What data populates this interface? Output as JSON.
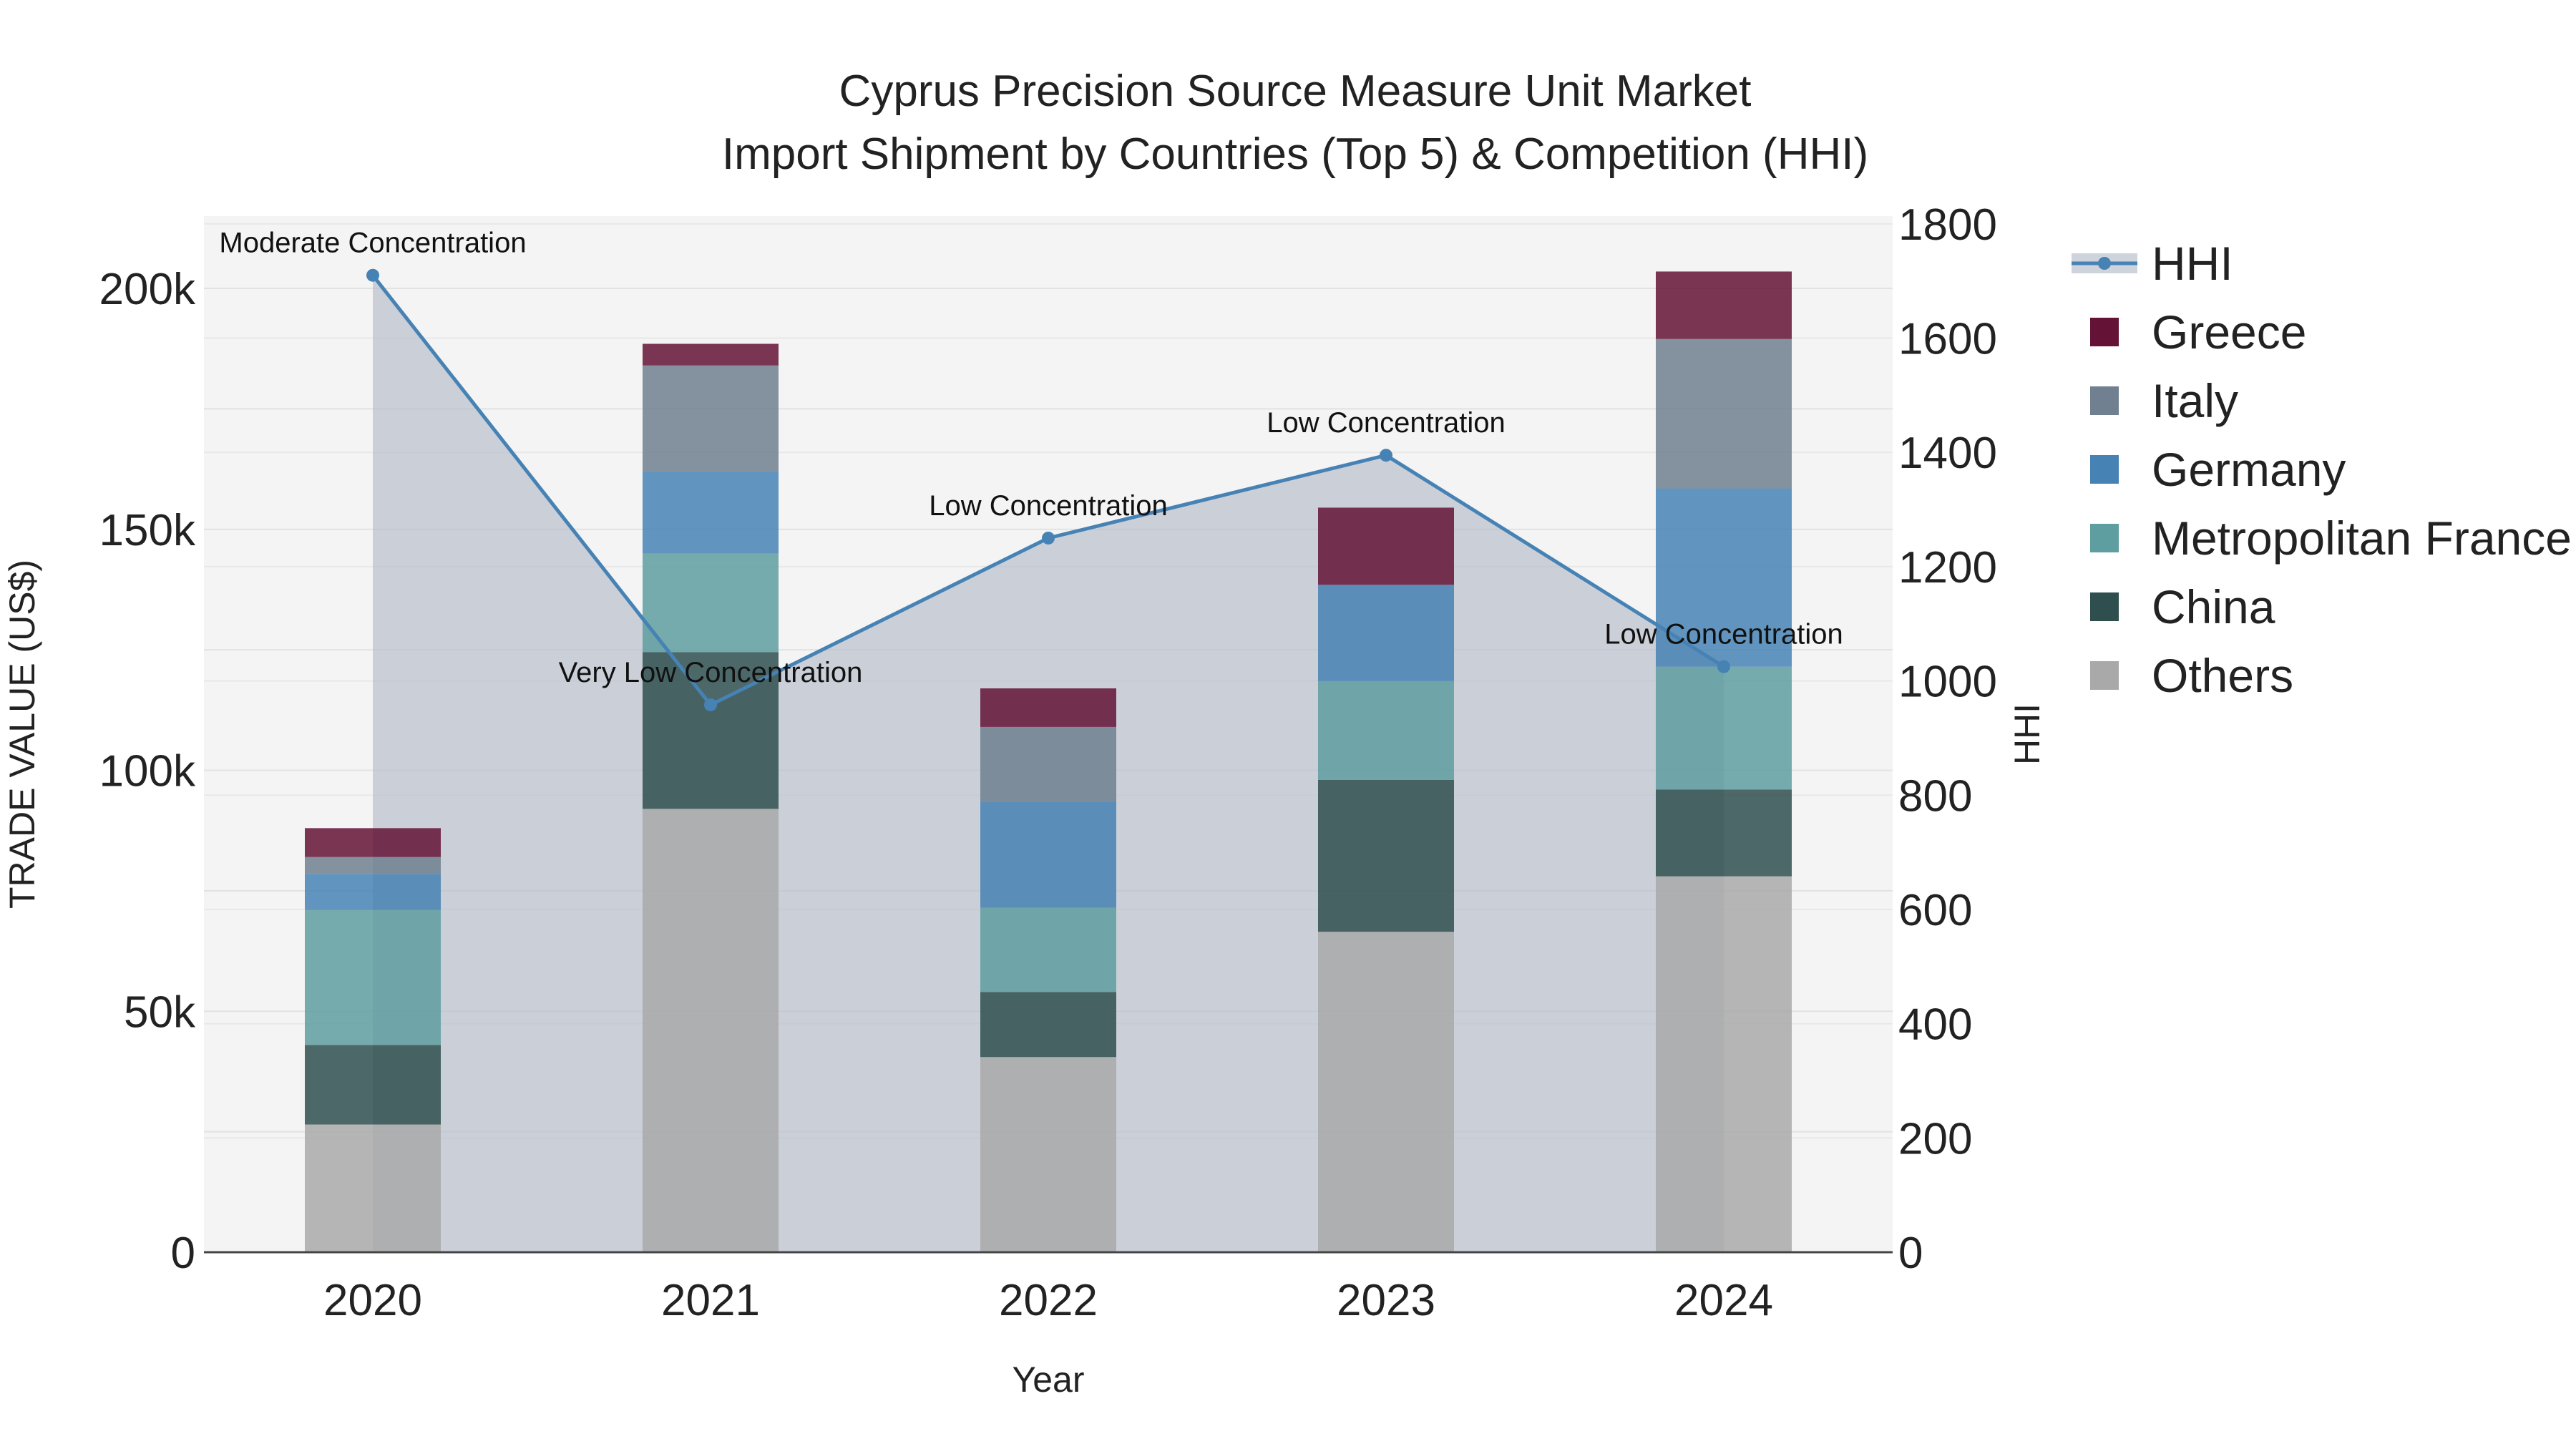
{
  "chart_data": {
    "type": "bar",
    "title_line1": "Cyprus Precision Source Measure Unit Market",
    "title_line2": "Import Shipment by Countries (Top 5) & Competition (HHI)",
    "xlabel": "Year",
    "ylabel": "TRADE VALUE (US$)",
    "y2label": "HHI",
    "categories": [
      "2020",
      "2021",
      "2022",
      "2023",
      "2024"
    ],
    "ylim": [
      0,
      215000
    ],
    "y2lim": [
      0,
      1813.6
    ],
    "yticks": [
      {
        "value": 0,
        "label": "0"
      },
      {
        "value": 50000,
        "label": "50k"
      },
      {
        "value": 100000,
        "label": "100k"
      },
      {
        "value": 150000,
        "label": "150k"
      },
      {
        "value": 200000,
        "label": "200k"
      }
    ],
    "y2ticks": [
      {
        "value": 0,
        "label": "0"
      },
      {
        "value": 200,
        "label": "200"
      },
      {
        "value": 400,
        "label": "400"
      },
      {
        "value": 600,
        "label": "600"
      },
      {
        "value": 800,
        "label": "800"
      },
      {
        "value": 1000,
        "label": "1000"
      },
      {
        "value": 1200,
        "label": "1200"
      },
      {
        "value": 1400,
        "label": "1400"
      },
      {
        "value": 1600,
        "label": "1600"
      },
      {
        "value": 1800,
        "label": "1800"
      }
    ],
    "series": [
      {
        "name": "Others",
        "color": "#a9a9a9",
        "values": [
          26500,
          92000,
          40500,
          66500,
          78000
        ]
      },
      {
        "name": "China",
        "color": "#2f4f4f",
        "values": [
          16500,
          32500,
          13500,
          31500,
          18000
        ]
      },
      {
        "name": "Metropolitan France",
        "color": "#5f9ea0",
        "values": [
          28000,
          20500,
          17500,
          20500,
          25500
        ]
      },
      {
        "name": "Germany",
        "color": "#4682b4",
        "values": [
          7500,
          17000,
          22000,
          20000,
          37000
        ]
      },
      {
        "name": "Italy",
        "color": "#708090",
        "values": [
          3500,
          22000,
          15500,
          0,
          31000
        ]
      },
      {
        "name": "Greece",
        "color": "#641336",
        "values": [
          6000,
          4500,
          8000,
          16000,
          14000
        ]
      }
    ],
    "hhi": {
      "name": "HHI",
      "color": "#4682b4",
      "values": [
        1710,
        958,
        1250,
        1395,
        1025
      ],
      "labels": [
        "Moderate Concentration",
        "Very Low Concentration",
        "Low Concentration",
        "Low Concentration",
        "Low Concentration"
      ]
    },
    "legend": {
      "position": "right",
      "items": [
        "HHI",
        "Greece",
        "Italy",
        "Germany",
        "Metropolitan France",
        "China",
        "Others"
      ]
    }
  }
}
